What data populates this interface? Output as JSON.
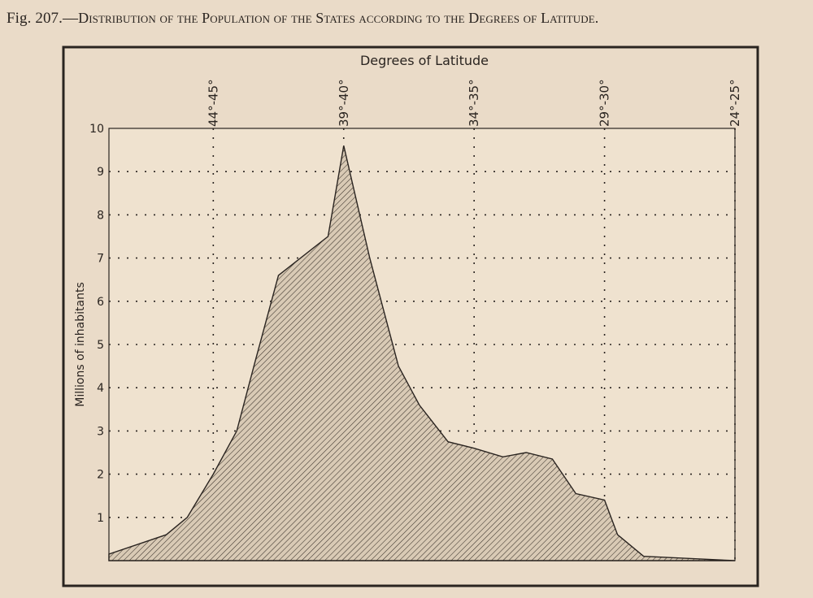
{
  "figure": {
    "number": "Fig. 207.—",
    "title": "Distribution of the Population of the States according to the Degrees of Latitude."
  },
  "chart_data": {
    "type": "area",
    "title": "Degrees of Latitude",
    "xlabel": "Degrees of Latitude",
    "ylabel": "Millions of inhabitants",
    "xticks": [
      "44°-45°",
      "39°-40°",
      "34°-35°",
      "29°-30°",
      "24°-25°"
    ],
    "xtick_values": [
      44.5,
      39.5,
      34.5,
      29.5,
      24.5
    ],
    "xlim": [
      48.5,
      24.5
    ],
    "yticks": [
      1,
      2,
      3,
      4,
      5,
      6,
      7,
      8,
      9,
      10
    ],
    "ylim": [
      0,
      10
    ],
    "grid": true,
    "fill": "diagonal hatching",
    "series": [
      {
        "x": [
          48.5,
          46.3,
          45.5,
          44.5,
          43.6,
          42.9,
          42.0,
          40.1,
          39.5,
          38.5,
          37.4,
          36.6,
          35.5,
          34.5,
          33.4,
          32.5,
          31.5,
          30.6,
          29.5,
          29.0,
          28.0,
          24.5
        ],
        "values": [
          0.15,
          0.6,
          1.0,
          2.0,
          3.0,
          4.6,
          6.6,
          7.5,
          9.6,
          7.0,
          4.5,
          3.6,
          2.75,
          2.6,
          2.4,
          2.5,
          2.35,
          1.55,
          1.4,
          0.6,
          0.1,
          0.0
        ]
      }
    ]
  },
  "colors": {
    "background": "#eadbc8",
    "ink": "#2a2420",
    "plot_area": "#efe2cf"
  }
}
